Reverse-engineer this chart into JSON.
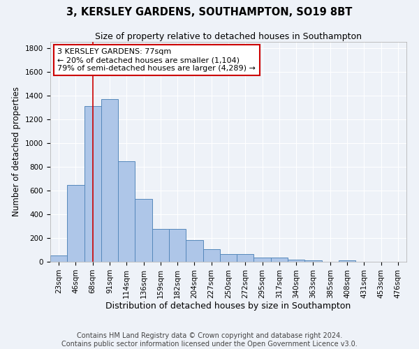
{
  "title": "3, KERSLEY GARDENS, SOUTHAMPTON, SO19 8BT",
  "subtitle": "Size of property relative to detached houses in Southampton",
  "xlabel": "Distribution of detached houses by size in Southampton",
  "ylabel": "Number of detached properties",
  "categories": [
    "23sqm",
    "46sqm",
    "68sqm",
    "91sqm",
    "114sqm",
    "136sqm",
    "159sqm",
    "182sqm",
    "204sqm",
    "227sqm",
    "250sqm",
    "272sqm",
    "295sqm",
    "317sqm",
    "340sqm",
    "363sqm",
    "385sqm",
    "408sqm",
    "431sqm",
    "453sqm",
    "476sqm"
  ],
  "values": [
    55,
    645,
    1310,
    1370,
    845,
    530,
    275,
    275,
    185,
    105,
    65,
    65,
    35,
    35,
    20,
    10,
    0,
    10,
    0,
    0,
    0
  ],
  "bar_color": "#aec6e8",
  "bar_edge_color": "#5588bb",
  "vline_x": 2,
  "vline_color": "#cc0000",
  "annotation_text": "3 KERSLEY GARDENS: 77sqm\n← 20% of detached houses are smaller (1,104)\n79% of semi-detached houses are larger (4,289) →",
  "annotation_box_color": "#ffffff",
  "annotation_box_edge_color": "#cc0000",
  "ylim": [
    0,
    1850
  ],
  "yticks": [
    0,
    200,
    400,
    600,
    800,
    1000,
    1200,
    1400,
    1600,
    1800
  ],
  "background_color": "#eef2f8",
  "grid_color": "#ffffff",
  "footer_line1": "Contains HM Land Registry data © Crown copyright and database right 2024.",
  "footer_line2": "Contains public sector information licensed under the Open Government Licence v3.0.",
  "title_fontsize": 10.5,
  "subtitle_fontsize": 9,
  "xlabel_fontsize": 9,
  "ylabel_fontsize": 8.5,
  "tick_fontsize": 7.5,
  "footer_fontsize": 7,
  "annotation_fontsize": 8
}
